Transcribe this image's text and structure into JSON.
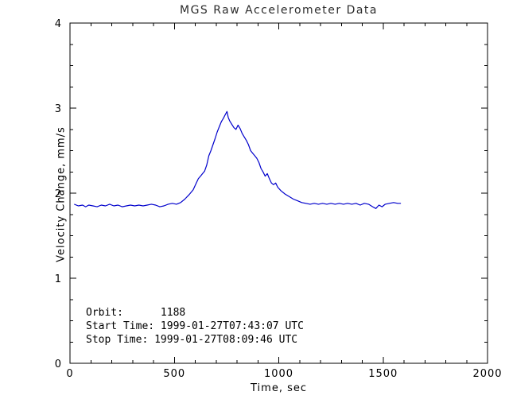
{
  "chart_data": {
    "type": "line",
    "title": "MGS Raw Accelerometer Data",
    "xlabel": "Time, sec",
    "ylabel": "Velocity Change, mm/s",
    "xlim": [
      0,
      2000
    ],
    "ylim": [
      0,
      4
    ],
    "xticks": [
      0,
      500,
      1000,
      1500,
      2000
    ],
    "yticks": [
      0,
      1,
      2,
      3,
      4
    ],
    "x_minor_divisions": 5,
    "y_minor_divisions": 4,
    "grid": false,
    "legend": "none",
    "line_color": "#0000cc",
    "axis_color": "#000000",
    "annotations": {
      "orbit": "Orbit:      1188",
      "start": "Start Time: 1999-01-27T07:43:07 UTC",
      "stop": "Stop Time: 1999-01-27T08:09:46 UTC"
    },
    "series": [
      {
        "name": "velocity_change",
        "points": [
          [
            20,
            1.87
          ],
          [
            40,
            1.85
          ],
          [
            60,
            1.86
          ],
          [
            75,
            1.84
          ],
          [
            90,
            1.86
          ],
          [
            110,
            1.85
          ],
          [
            130,
            1.84
          ],
          [
            150,
            1.86
          ],
          [
            170,
            1.85
          ],
          [
            190,
            1.87
          ],
          [
            210,
            1.85
          ],
          [
            230,
            1.86
          ],
          [
            250,
            1.84
          ],
          [
            270,
            1.85
          ],
          [
            290,
            1.86
          ],
          [
            310,
            1.85
          ],
          [
            330,
            1.86
          ],
          [
            350,
            1.85
          ],
          [
            370,
            1.86
          ],
          [
            390,
            1.87
          ],
          [
            410,
            1.86
          ],
          [
            430,
            1.84
          ],
          [
            450,
            1.85
          ],
          [
            470,
            1.87
          ],
          [
            490,
            1.88
          ],
          [
            510,
            1.87
          ],
          [
            530,
            1.89
          ],
          [
            550,
            1.93
          ],
          [
            570,
            1.98
          ],
          [
            590,
            2.04
          ],
          [
            605,
            2.12
          ],
          [
            615,
            2.17
          ],
          [
            625,
            2.2
          ],
          [
            635,
            2.23
          ],
          [
            645,
            2.26
          ],
          [
            655,
            2.33
          ],
          [
            665,
            2.44
          ],
          [
            675,
            2.5
          ],
          [
            685,
            2.57
          ],
          [
            695,
            2.64
          ],
          [
            705,
            2.72
          ],
          [
            715,
            2.78
          ],
          [
            725,
            2.84
          ],
          [
            735,
            2.88
          ],
          [
            745,
            2.93
          ],
          [
            752,
            2.96
          ],
          [
            758,
            2.89
          ],
          [
            765,
            2.85
          ],
          [
            775,
            2.81
          ],
          [
            785,
            2.77
          ],
          [
            795,
            2.75
          ],
          [
            805,
            2.8
          ],
          [
            815,
            2.76
          ],
          [
            825,
            2.7
          ],
          [
            835,
            2.66
          ],
          [
            845,
            2.62
          ],
          [
            855,
            2.57
          ],
          [
            865,
            2.5
          ],
          [
            875,
            2.47
          ],
          [
            885,
            2.44
          ],
          [
            895,
            2.41
          ],
          [
            905,
            2.36
          ],
          [
            915,
            2.29
          ],
          [
            925,
            2.25
          ],
          [
            935,
            2.2
          ],
          [
            945,
            2.23
          ],
          [
            955,
            2.17
          ],
          [
            965,
            2.12
          ],
          [
            975,
            2.1
          ],
          [
            985,
            2.12
          ],
          [
            995,
            2.07
          ],
          [
            1010,
            2.03
          ],
          [
            1030,
            1.99
          ],
          [
            1050,
            1.96
          ],
          [
            1070,
            1.93
          ],
          [
            1090,
            1.91
          ],
          [
            1110,
            1.89
          ],
          [
            1130,
            1.88
          ],
          [
            1150,
            1.87
          ],
          [
            1170,
            1.88
          ],
          [
            1190,
            1.87
          ],
          [
            1210,
            1.88
          ],
          [
            1230,
            1.87
          ],
          [
            1250,
            1.88
          ],
          [
            1270,
            1.87
          ],
          [
            1290,
            1.88
          ],
          [
            1310,
            1.87
          ],
          [
            1330,
            1.88
          ],
          [
            1350,
            1.87
          ],
          [
            1370,
            1.88
          ],
          [
            1390,
            1.86
          ],
          [
            1410,
            1.88
          ],
          [
            1430,
            1.87
          ],
          [
            1450,
            1.84
          ],
          [
            1465,
            1.82
          ],
          [
            1480,
            1.86
          ],
          [
            1495,
            1.84
          ],
          [
            1510,
            1.87
          ],
          [
            1530,
            1.88
          ],
          [
            1550,
            1.89
          ],
          [
            1570,
            1.88
          ],
          [
            1585,
            1.88
          ]
        ]
      }
    ]
  }
}
